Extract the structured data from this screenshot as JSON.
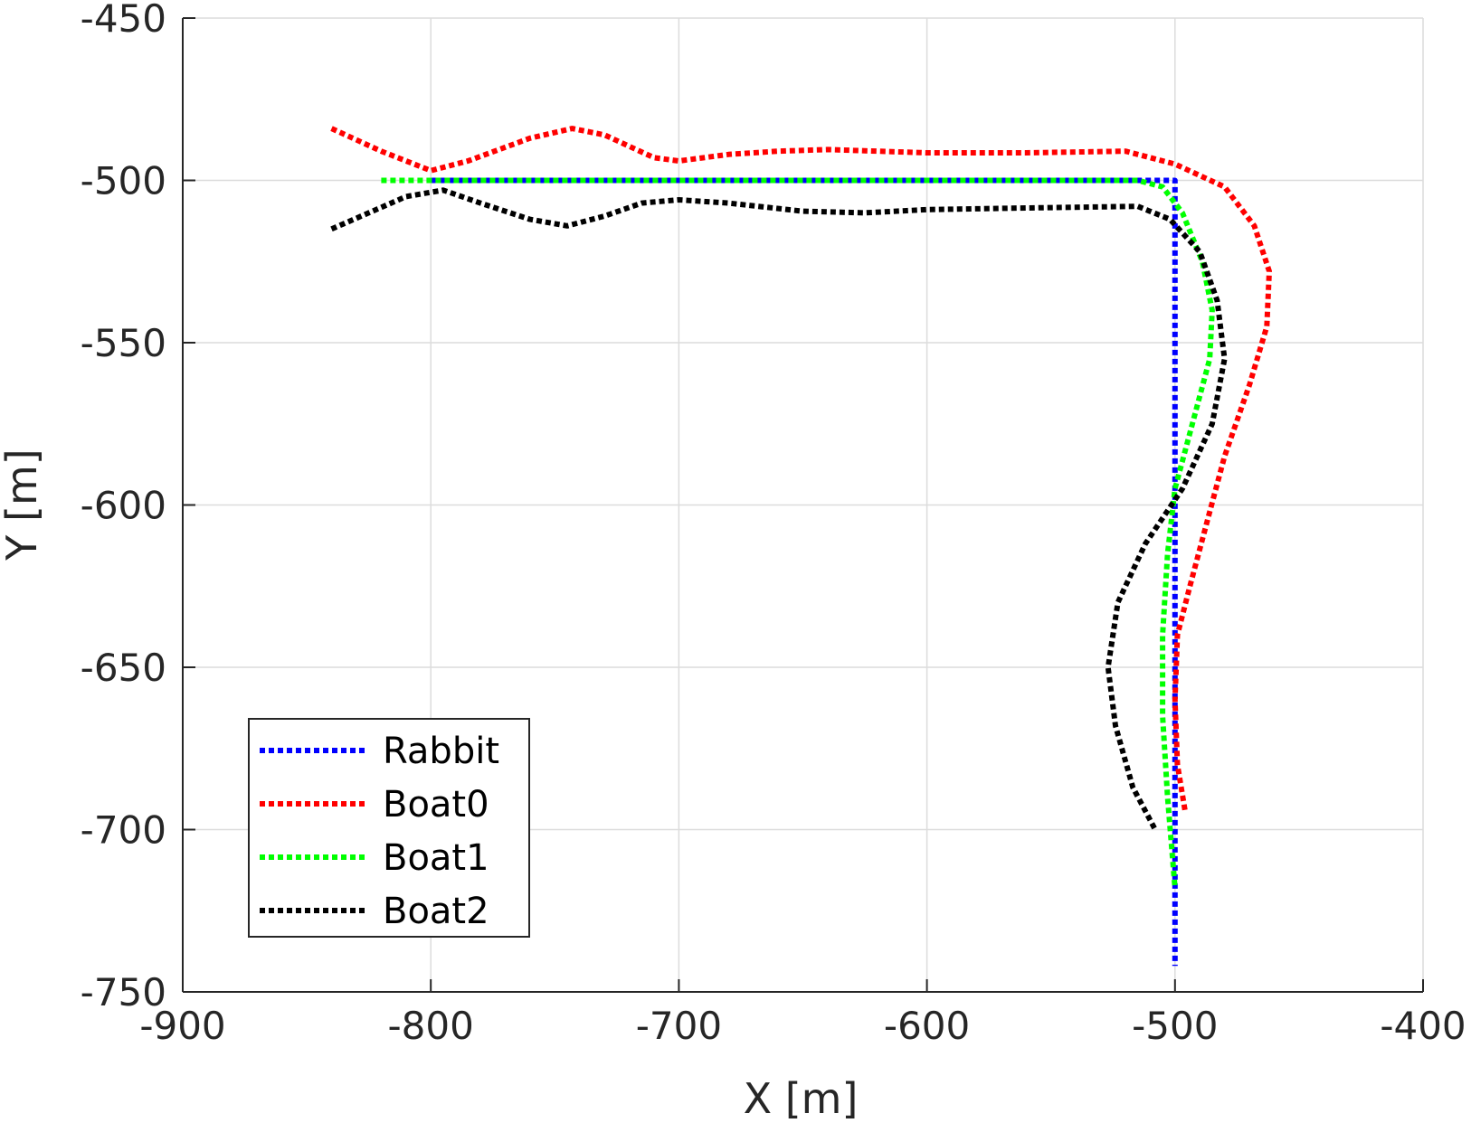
{
  "chart_data": {
    "type": "line",
    "title": "",
    "xlabel": "X [m]",
    "ylabel": "Y [m]",
    "xlim": [
      -900,
      -400
    ],
    "ylim": [
      -750,
      -450
    ],
    "xticks": [
      -900,
      -800,
      -700,
      -600,
      -500,
      -400
    ],
    "yticks": [
      -450,
      -500,
      -550,
      -600,
      -650,
      -700,
      -750
    ],
    "xtick_labels": [
      "-900",
      "-800",
      "-700",
      "-600",
      "-500",
      "-400"
    ],
    "ytick_labels": [
      "-450",
      "-500",
      "-550",
      "-600",
      "-650",
      "-700",
      "-750"
    ],
    "grid": true,
    "legend_position": "bottom-left",
    "series": [
      {
        "name": "Rabbit",
        "color": "#0000ff",
        "style": "dotted",
        "points": [
          [
            -800,
            -500
          ],
          [
            -500,
            -500
          ],
          [
            -500,
            -742
          ]
        ]
      },
      {
        "name": "Boat0",
        "color": "#ff0000",
        "style": "dotted",
        "points": [
          [
            -840,
            -484
          ],
          [
            -820,
            -491
          ],
          [
            -800,
            -497
          ],
          [
            -785,
            -494
          ],
          [
            -760,
            -487
          ],
          [
            -743,
            -484
          ],
          [
            -730,
            -486
          ],
          [
            -710,
            -493
          ],
          [
            -700,
            -494
          ],
          [
            -680,
            -492
          ],
          [
            -660,
            -491
          ],
          [
            -640,
            -490.5
          ],
          [
            -600,
            -491.5
          ],
          [
            -560,
            -491.5
          ],
          [
            -520,
            -491
          ],
          [
            -500,
            -495
          ],
          [
            -480,
            -502
          ],
          [
            -468,
            -514
          ],
          [
            -462,
            -528
          ],
          [
            -463,
            -545
          ],
          [
            -470,
            -563
          ],
          [
            -480,
            -585
          ],
          [
            -487,
            -605
          ],
          [
            -494,
            -625
          ],
          [
            -499,
            -640
          ],
          [
            -500,
            -660
          ],
          [
            -499,
            -680
          ],
          [
            -496,
            -694
          ]
        ]
      },
      {
        "name": "Boat1",
        "color": "#00ff00",
        "style": "dotted",
        "points": [
          [
            -820,
            -500
          ],
          [
            -700,
            -500
          ],
          [
            -600,
            -500
          ],
          [
            -515,
            -500
          ],
          [
            -505,
            -502
          ],
          [
            -497,
            -510
          ],
          [
            -489,
            -525
          ],
          [
            -485,
            -540
          ],
          [
            -486,
            -555
          ],
          [
            -493,
            -575
          ],
          [
            -500,
            -595
          ],
          [
            -503,
            -615
          ],
          [
            -505,
            -640
          ],
          [
            -505,
            -665
          ],
          [
            -503,
            -690
          ],
          [
            -500,
            -718
          ]
        ]
      },
      {
        "name": "Boat2",
        "color": "#000000",
        "style": "dotted",
        "points": [
          [
            -840,
            -515
          ],
          [
            -825,
            -510
          ],
          [
            -810,
            -505
          ],
          [
            -795,
            -503
          ],
          [
            -780,
            -507
          ],
          [
            -760,
            -512
          ],
          [
            -745,
            -514
          ],
          [
            -730,
            -511
          ],
          [
            -715,
            -507
          ],
          [
            -700,
            -506
          ],
          [
            -680,
            -507
          ],
          [
            -650,
            -509.5
          ],
          [
            -625,
            -510
          ],
          [
            -600,
            -509
          ],
          [
            -560,
            -508.5
          ],
          [
            -515,
            -508
          ],
          [
            -502,
            -512
          ],
          [
            -490,
            -522
          ],
          [
            -483,
            -537
          ],
          [
            -480,
            -555
          ],
          [
            -485,
            -575
          ],
          [
            -497,
            -595
          ],
          [
            -512,
            -612
          ],
          [
            -523,
            -630
          ],
          [
            -527,
            -650
          ],
          [
            -524,
            -668
          ],
          [
            -517,
            -687
          ],
          [
            -508,
            -700
          ]
        ]
      }
    ]
  }
}
